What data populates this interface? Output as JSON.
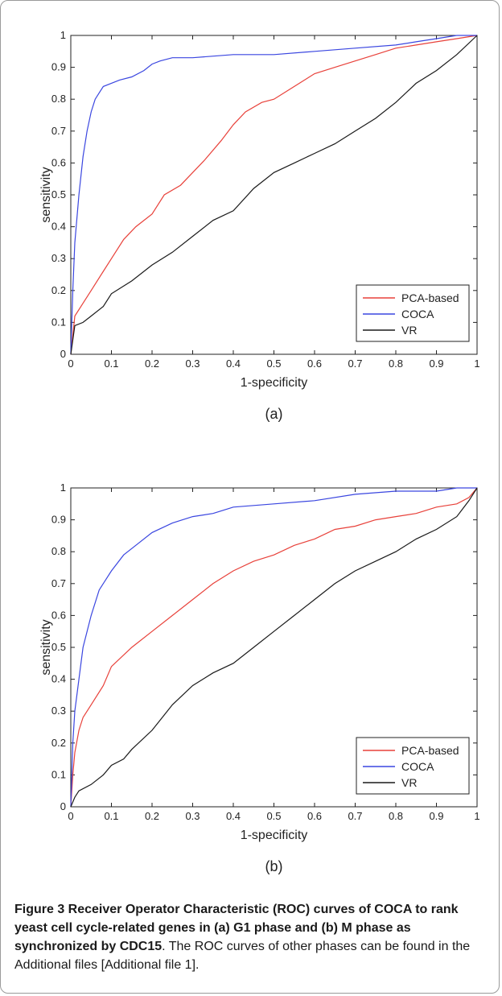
{
  "chart_data": [
    {
      "type": "line",
      "panel_label": "(a)",
      "xlabel": "1-specificity",
      "ylabel": "sensitivity",
      "xlim": [
        0,
        1
      ],
      "ylim": [
        0,
        1
      ],
      "x_ticks": [
        "0",
        "0.1",
        "0.2",
        "0.3",
        "0.4",
        "0.5",
        "0.6",
        "0.7",
        "0.8",
        "0.9",
        "1"
      ],
      "y_ticks": [
        "0",
        "0.1",
        "0.2",
        "0.3",
        "0.4",
        "0.5",
        "0.6",
        "0.7",
        "0.8",
        "0.9",
        "1"
      ],
      "grid": false,
      "legend_position": "bottom-right",
      "series": [
        {
          "name": "PCA-based",
          "color": "#e8413a",
          "x": [
            0,
            0.01,
            0.03,
            0.05,
            0.08,
            0.1,
            0.13,
            0.16,
            0.2,
            0.23,
            0.27,
            0.3,
            0.33,
            0.37,
            0.4,
            0.43,
            0.47,
            0.5,
            0.55,
            0.6,
            0.65,
            0.7,
            0.75,
            0.8,
            0.85,
            0.9,
            0.95,
            1.0
          ],
          "y": [
            0,
            0.12,
            0.16,
            0.2,
            0.26,
            0.3,
            0.36,
            0.4,
            0.44,
            0.5,
            0.53,
            0.57,
            0.61,
            0.67,
            0.72,
            0.76,
            0.79,
            0.8,
            0.84,
            0.88,
            0.9,
            0.92,
            0.94,
            0.96,
            0.97,
            0.98,
            0.99,
            1.0
          ]
        },
        {
          "name": "COCA",
          "color": "#3a46e0",
          "x": [
            0,
            0.005,
            0.01,
            0.02,
            0.03,
            0.04,
            0.05,
            0.06,
            0.07,
            0.08,
            0.1,
            0.12,
            0.15,
            0.18,
            0.2,
            0.22,
            0.25,
            0.3,
            0.4,
            0.5,
            0.6,
            0.7,
            0.8,
            0.85,
            0.9,
            0.95,
            1.0
          ],
          "y": [
            0,
            0.2,
            0.35,
            0.5,
            0.62,
            0.7,
            0.76,
            0.8,
            0.82,
            0.84,
            0.85,
            0.86,
            0.87,
            0.89,
            0.91,
            0.92,
            0.93,
            0.93,
            0.94,
            0.94,
            0.95,
            0.96,
            0.97,
            0.98,
            0.99,
            1.0,
            1.0
          ]
        },
        {
          "name": "VR",
          "color": "#1a1a1a",
          "x": [
            0,
            0.01,
            0.03,
            0.05,
            0.08,
            0.1,
            0.15,
            0.2,
            0.25,
            0.3,
            0.35,
            0.4,
            0.45,
            0.5,
            0.55,
            0.6,
            0.65,
            0.7,
            0.75,
            0.8,
            0.85,
            0.9,
            0.95,
            1.0
          ],
          "y": [
            0,
            0.09,
            0.1,
            0.12,
            0.15,
            0.19,
            0.23,
            0.28,
            0.32,
            0.37,
            0.42,
            0.45,
            0.52,
            0.57,
            0.6,
            0.63,
            0.66,
            0.7,
            0.74,
            0.79,
            0.85,
            0.89,
            0.94,
            1.0
          ]
        }
      ]
    },
    {
      "type": "line",
      "panel_label": "(b)",
      "xlabel": "1-specificity",
      "ylabel": "sensitivity",
      "xlim": [
        0,
        1
      ],
      "ylim": [
        0,
        1
      ],
      "x_ticks": [
        "0",
        "0.1",
        "0.2",
        "0.3",
        "0.4",
        "0.5",
        "0.6",
        "0.7",
        "0.8",
        "0.9",
        "1"
      ],
      "y_ticks": [
        "0",
        "0.1",
        "0.2",
        "0.3",
        "0.4",
        "0.5",
        "0.6",
        "0.7",
        "0.8",
        "0.9",
        "1"
      ],
      "grid": false,
      "legend_position": "bottom-right",
      "series": [
        {
          "name": "PCA-based",
          "color": "#e8413a",
          "x": [
            0,
            0.005,
            0.01,
            0.02,
            0.03,
            0.05,
            0.08,
            0.1,
            0.15,
            0.2,
            0.25,
            0.3,
            0.35,
            0.4,
            0.45,
            0.5,
            0.55,
            0.6,
            0.65,
            0.7,
            0.75,
            0.8,
            0.85,
            0.9,
            0.95,
            0.98,
            1.0
          ],
          "y": [
            0,
            0.1,
            0.17,
            0.24,
            0.28,
            0.32,
            0.38,
            0.44,
            0.5,
            0.55,
            0.6,
            0.65,
            0.7,
            0.74,
            0.77,
            0.79,
            0.82,
            0.84,
            0.87,
            0.88,
            0.9,
            0.91,
            0.92,
            0.94,
            0.95,
            0.97,
            1.0
          ]
        },
        {
          "name": "COCA",
          "color": "#3a46e0",
          "x": [
            0,
            0.005,
            0.01,
            0.02,
            0.03,
            0.05,
            0.07,
            0.1,
            0.13,
            0.16,
            0.2,
            0.25,
            0.3,
            0.35,
            0.4,
            0.5,
            0.6,
            0.7,
            0.8,
            0.9,
            0.95,
            1.0
          ],
          "y": [
            0,
            0.2,
            0.3,
            0.4,
            0.5,
            0.6,
            0.68,
            0.74,
            0.79,
            0.82,
            0.86,
            0.89,
            0.91,
            0.92,
            0.94,
            0.95,
            0.96,
            0.98,
            0.99,
            0.99,
            1.0,
            1.0
          ]
        },
        {
          "name": "VR",
          "color": "#1a1a1a",
          "x": [
            0,
            0.01,
            0.02,
            0.05,
            0.08,
            0.1,
            0.13,
            0.15,
            0.2,
            0.25,
            0.3,
            0.35,
            0.4,
            0.45,
            0.5,
            0.55,
            0.6,
            0.65,
            0.7,
            0.75,
            0.8,
            0.85,
            0.9,
            0.95,
            0.98,
            1.0
          ],
          "y": [
            0,
            0.03,
            0.05,
            0.07,
            0.1,
            0.13,
            0.15,
            0.18,
            0.24,
            0.32,
            0.38,
            0.42,
            0.45,
            0.5,
            0.55,
            0.6,
            0.65,
            0.7,
            0.74,
            0.77,
            0.8,
            0.84,
            0.87,
            0.91,
            0.96,
            1.0
          ]
        }
      ]
    }
  ],
  "caption": {
    "label": "Figure 3",
    "bold_text": " Receiver Operator Characteristic (ROC) curves of COCA to rank yeast cell cycle-related genes in (a) G1 phase and (b) M phase as synchronized by CDC15",
    "text": ". The ROC curves of other phases can be found in the Additional files [Additional file 1]."
  }
}
